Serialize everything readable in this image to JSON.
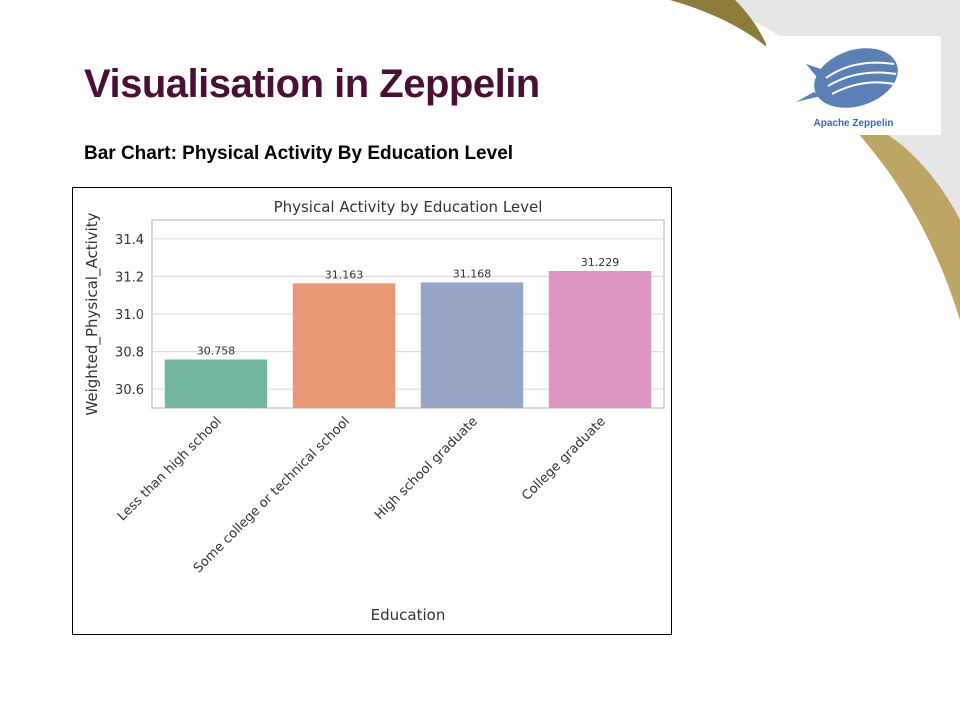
{
  "slide": {
    "title": "Visualisation in Zeppelin",
    "subtitle": "Bar Chart: Physical Activity By Education Level"
  },
  "logo": {
    "text": "Apache Zeppelin",
    "icon": "zeppelin-airship-icon",
    "color": "#5b80b5"
  },
  "theme": {
    "title_color": "#4a0f35",
    "swoosh_dark": "#8c7b3a",
    "swoosh_light": "#bca565",
    "corner_grey": "#e6e6e6"
  },
  "chart_data": {
    "type": "bar",
    "title": "Physical Activity by Education Level",
    "xlabel": "Education",
    "ylabel": "Weighted_Physical_Activity",
    "categories": [
      "Less than high school",
      "Some college or technical school",
      "High school graduate",
      "College graduate"
    ],
    "values": [
      30.758,
      31.163,
      31.168,
      31.229
    ],
    "value_labels": [
      "30.758",
      "31.163",
      "31.168",
      "31.229"
    ],
    "colors": [
      "#72b6a0",
      "#e99876",
      "#96a5c5",
      "#db95c0"
    ],
    "ylim": [
      30.5,
      31.5
    ],
    "yticks": [
      30.6,
      30.8,
      31.0,
      31.2,
      31.4
    ],
    "ytick_labels": [
      "30.6",
      "30.8",
      "31.0",
      "31.2",
      "31.4"
    ],
    "grid": true,
    "legend": "none"
  }
}
